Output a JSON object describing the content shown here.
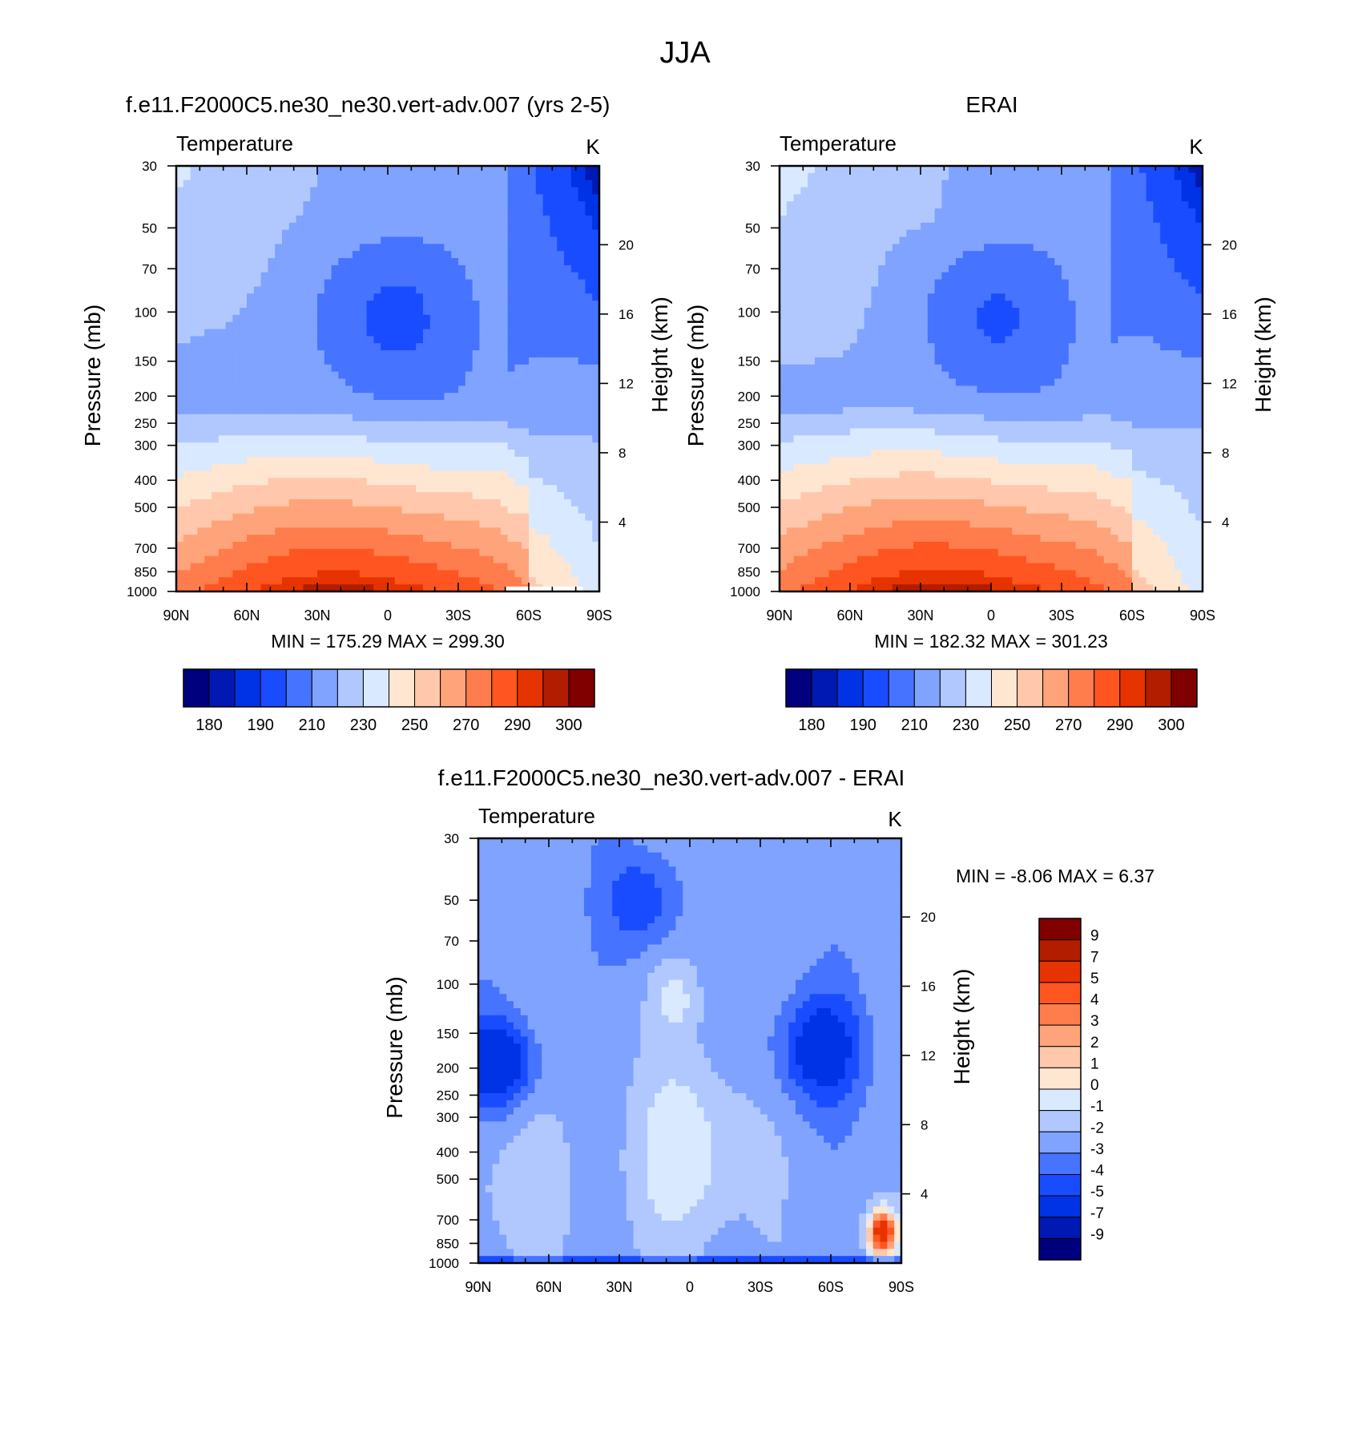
{
  "figure_title": "JJA",
  "colors": {
    "abs_levels": [
      "#00007f",
      "#0019b2",
      "#0033e5",
      "#1a4cff",
      "#4673ff",
      "#7fa3ff",
      "#b1c8ff",
      "#d9e9ff",
      "#ffe6d1",
      "#ffc8ad",
      "#ffa47a",
      "#ff7d4d",
      "#ff5520",
      "#e63300",
      "#b21d00",
      "#800000"
    ],
    "diff_levels": [
      "#00007f",
      "#0019b2",
      "#0033e5",
      "#1a4cff",
      "#4673ff",
      "#7fa3ff",
      "#b1c8ff",
      "#d9e9ff",
      "#ffe6d1",
      "#ffc8ad",
      "#ffa47a",
      "#ff7d4d",
      "#ff5520",
      "#e63300",
      "#b21d00",
      "#800000"
    ]
  },
  "chart_data": [
    {
      "type": "contour",
      "panel": "model",
      "title": "f.e11.F2000C5.ne30_ne30.vert-adv.007 (yrs 2-5)",
      "left_title": "Temperature",
      "units": "K",
      "ylabel": "Pressure (mb)",
      "y2label": "Height (km)",
      "x_ticks": [
        "90N",
        "60N",
        "30N",
        "0",
        "30S",
        "60S",
        "90S"
      ],
      "y_ticks": [
        "30",
        "50",
        "70",
        "100",
        "150",
        "200",
        "250",
        "300",
        "400",
        "500",
        "700",
        "850",
        "1000"
      ],
      "y2_ticks": [
        "20",
        "16",
        "12",
        "8",
        "4"
      ],
      "ylim_mb": [
        30,
        1000
      ],
      "stats": "MIN = 175.29  MAX = 299.30",
      "min": 175.29,
      "max": 299.3,
      "colorbar_labels": [
        "180",
        "190",
        "210",
        "230",
        "250",
        "270",
        "290",
        "300"
      ]
    },
    {
      "type": "contour",
      "panel": "obs",
      "title": "ERAI",
      "left_title": "Temperature",
      "units": "K",
      "ylabel": "Pressure (mb)",
      "y2label": "Height (km)",
      "x_ticks": [
        "90N",
        "60N",
        "30N",
        "0",
        "30S",
        "60S",
        "90S"
      ],
      "y_ticks": [
        "30",
        "50",
        "70",
        "100",
        "150",
        "200",
        "250",
        "300",
        "400",
        "500",
        "700",
        "850",
        "1000"
      ],
      "y2_ticks": [
        "20",
        "16",
        "12",
        "8",
        "4"
      ],
      "ylim_mb": [
        30,
        1000
      ],
      "stats": "MIN = 182.32  MAX = 301.23",
      "min": 182.32,
      "max": 301.23,
      "colorbar_labels": [
        "180",
        "190",
        "210",
        "230",
        "250",
        "270",
        "290",
        "300"
      ]
    },
    {
      "type": "contour",
      "panel": "difference",
      "title": "f.e11.F2000C5.ne30_ne30.vert-adv.007 - ERAI",
      "left_title": "Temperature",
      "units": "K",
      "ylabel": "Pressure (mb)",
      "y2label": "Height (km)",
      "x_ticks": [
        "90N",
        "60N",
        "30N",
        "0",
        "30S",
        "60S",
        "90S"
      ],
      "y_ticks": [
        "30",
        "50",
        "70",
        "100",
        "150",
        "200",
        "250",
        "300",
        "400",
        "500",
        "700",
        "850",
        "1000"
      ],
      "y2_ticks": [
        "20",
        "16",
        "12",
        "8",
        "4"
      ],
      "ylim_mb": [
        30,
        1000
      ],
      "stats": "MIN =  -8.06  MAX =   6.37",
      "min": -8.06,
      "max": 6.37,
      "colorbar_labels": [
        "9",
        "7",
        "5",
        "4",
        "3",
        "2",
        "1",
        "0",
        "-1",
        "-2",
        "-3",
        "-4",
        "-5",
        "-7",
        "-9"
      ]
    }
  ]
}
